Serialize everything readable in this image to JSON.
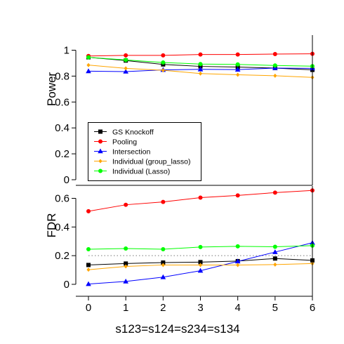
{
  "chart_data": [
    {
      "type": "line",
      "panel": "top",
      "ylabel": "Power",
      "xlim": [
        0,
        6
      ],
      "ylim": [
        0,
        1
      ],
      "yticks": [
        "0",
        "0.2",
        "0.4",
        "0.6",
        "0.8",
        "1"
      ],
      "ytick_values": [
        0,
        0.2,
        0.4,
        0.6,
        0.8,
        1
      ],
      "grid": false,
      "legend": "bottom-left",
      "x": [
        0,
        1,
        2,
        3,
        4,
        5,
        6
      ],
      "series": [
        {
          "name": "GS Knockoff",
          "color": "#000000",
          "marker": "square",
          "values": [
            0.945,
            0.92,
            0.89,
            0.875,
            0.87,
            0.862,
            0.848
          ]
        },
        {
          "name": "Pooling",
          "color": "#ff0000",
          "marker": "circle",
          "values": [
            0.955,
            0.96,
            0.96,
            0.967,
            0.967,
            0.97,
            0.972
          ]
        },
        {
          "name": "Intersection",
          "color": "#0000ff",
          "marker": "triangle",
          "values": [
            0.838,
            0.835,
            0.848,
            0.852,
            0.85,
            0.862,
            0.86
          ]
        },
        {
          "name": "Individual (group_lasso)",
          "color": "#ffa500",
          "marker": "diamond",
          "values": [
            0.885,
            0.86,
            0.845,
            0.82,
            0.81,
            0.803,
            0.79
          ]
        },
        {
          "name": "Individual (Lasso)",
          "color": "#00ff00",
          "marker": "circle",
          "values": [
            0.945,
            0.925,
            0.905,
            0.893,
            0.89,
            0.882,
            0.877
          ]
        }
      ]
    },
    {
      "type": "line",
      "panel": "bottom",
      "ylabel": "FDR",
      "xlabel": "s123=s124=s234=s134",
      "xlim": [
        0,
        6
      ],
      "ylim": [
        0,
        0.7
      ],
      "xticks": [
        "0",
        "1",
        "2",
        "3",
        "4",
        "5",
        "6"
      ],
      "yticks": [
        "0",
        "0.2",
        "0.4",
        "0.6"
      ],
      "ytick_values": [
        0,
        0.2,
        0.4,
        0.6
      ],
      "grid": false,
      "reference_line": {
        "y": 0.2,
        "style": "dotted"
      },
      "x": [
        0,
        1,
        2,
        3,
        4,
        5,
        6
      ],
      "series": [
        {
          "name": "GS Knockoff",
          "color": "#000000",
          "marker": "square",
          "values": [
            0.135,
            0.145,
            0.152,
            0.155,
            0.162,
            0.18,
            0.167
          ]
        },
        {
          "name": "Pooling",
          "color": "#ff0000",
          "marker": "circle",
          "values": [
            0.51,
            0.555,
            0.575,
            0.605,
            0.62,
            0.64,
            0.655
          ]
        },
        {
          "name": "Intersection",
          "color": "#0000ff",
          "marker": "triangle",
          "values": [
            0.002,
            0.02,
            0.05,
            0.095,
            0.16,
            0.225,
            0.29
          ]
        },
        {
          "name": "Individual (group_lasso)",
          "color": "#ffa500",
          "marker": "diamond",
          "values": [
            0.102,
            0.125,
            0.135,
            0.135,
            0.135,
            0.138,
            0.145
          ]
        },
        {
          "name": "Individual (Lasso)",
          "color": "#00ff00",
          "marker": "circle",
          "values": [
            0.245,
            0.25,
            0.245,
            0.26,
            0.265,
            0.262,
            0.27
          ]
        }
      ]
    }
  ]
}
